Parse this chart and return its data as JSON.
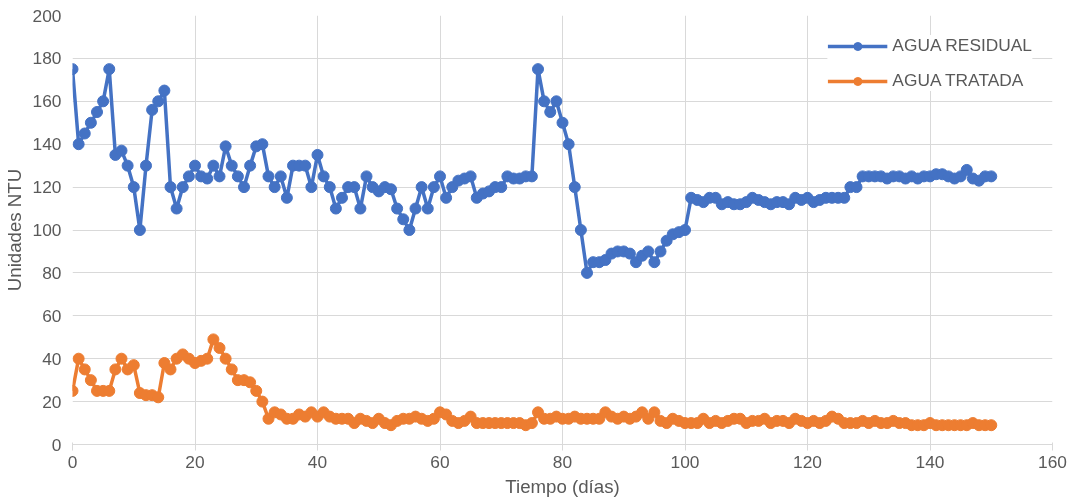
{
  "chart_data": {
    "type": "line",
    "xlabel": "Tiempo (días)",
    "ylabel": "Unidades NTU",
    "x": [
      0,
      1,
      2,
      3,
      4,
      5,
      6,
      7,
      8,
      9,
      10,
      11,
      12,
      13,
      14,
      15,
      16,
      17,
      18,
      19,
      20,
      21,
      22,
      23,
      24,
      25,
      26,
      27,
      28,
      29,
      30,
      31,
      32,
      33,
      34,
      35,
      36,
      37,
      38,
      39,
      40,
      41,
      42,
      43,
      44,
      45,
      46,
      47,
      48,
      49,
      50,
      51,
      52,
      53,
      54,
      55,
      56,
      57,
      58,
      59,
      60,
      61,
      62,
      63,
      64,
      65,
      66,
      67,
      68,
      69,
      70,
      71,
      72,
      73,
      74,
      75,
      76,
      77,
      78,
      79,
      80,
      81,
      82,
      83,
      84,
      85,
      86,
      87,
      88,
      89,
      90,
      91,
      92,
      93,
      94,
      95,
      96,
      97,
      98,
      99,
      100,
      101,
      102,
      103,
      104,
      105,
      106,
      107,
      108,
      109,
      110,
      111,
      112,
      113,
      114,
      115,
      116,
      117,
      118,
      119,
      120,
      121,
      122,
      123,
      124,
      125,
      126,
      127,
      128,
      129,
      130,
      131,
      132,
      133,
      134,
      135,
      136,
      137,
      138,
      139,
      140,
      141,
      142,
      143,
      144,
      145,
      146,
      147,
      148,
      149,
      150
    ],
    "series": [
      {
        "name": "AGUA RESIDUAL",
        "color": "#4472c4",
        "values": [
          175,
          140,
          145,
          150,
          155,
          160,
          175,
          135,
          137,
          130,
          120,
          100,
          130,
          156,
          160,
          165,
          120,
          110,
          120,
          125,
          130,
          125,
          124,
          130,
          125,
          139,
          130,
          125,
          120,
          130,
          139,
          140,
          125,
          120,
          125,
          115,
          130,
          130,
          130,
          120,
          135,
          125,
          120,
          110,
          115,
          120,
          120,
          110,
          125,
          120,
          118,
          120,
          119,
          110,
          105,
          100,
          110,
          120,
          110,
          120,
          125,
          115,
          120,
          123,
          124,
          125,
          115,
          117,
          118,
          120,
          120,
          125,
          124,
          124,
          125,
          125,
          175,
          160,
          155,
          160,
          150,
          140,
          120,
          100,
          80,
          85,
          85,
          86,
          89,
          90,
          90,
          89,
          85,
          88,
          90,
          85,
          90,
          95,
          98,
          99,
          100,
          115,
          114,
          113,
          115,
          115,
          112,
          113,
          112,
          112,
          113,
          115,
          114,
          113,
          112,
          113,
          113,
          112,
          115,
          114,
          115,
          113,
          114,
          115,
          115,
          115,
          115,
          120,
          120,
          125,
          125,
          125,
          125,
          124,
          125,
          125,
          124,
          125,
          124,
          125,
          125,
          126,
          126,
          125,
          124,
          125,
          128,
          124,
          123,
          125,
          125
        ]
      },
      {
        "name": "AGUA TRATADA",
        "color": "#ed7d31",
        "values": [
          25,
          40,
          35,
          30,
          25,
          25,
          25,
          35,
          40,
          35,
          37,
          24,
          23,
          23,
          22,
          38,
          35,
          40,
          42,
          40,
          38,
          39,
          40,
          49,
          45,
          40,
          35,
          30,
          30,
          29,
          25,
          20,
          12,
          15,
          14,
          12,
          12,
          14,
          13,
          15,
          13,
          15,
          13,
          12,
          12,
          12,
          10,
          12,
          11,
          10,
          12,
          10,
          9,
          11,
          12,
          12,
          13,
          12,
          11,
          12,
          15,
          14,
          11,
          10,
          11,
          13,
          10,
          10,
          10,
          10,
          10,
          10,
          10,
          10,
          9,
          10,
          15,
          12,
          12,
          13,
          12,
          12,
          13,
          12,
          12,
          12,
          12,
          15,
          13,
          12,
          13,
          12,
          13,
          15,
          12,
          15,
          11,
          10,
          12,
          11,
          10,
          10,
          10,
          12,
          10,
          11,
          10,
          11,
          12,
          12,
          10,
          11,
          11,
          12,
          10,
          11,
          11,
          10,
          12,
          11,
          10,
          11,
          10,
          11,
          13,
          12,
          10,
          10,
          10,
          11,
          10,
          11,
          10,
          10,
          11,
          10,
          10,
          9,
          9,
          9,
          10,
          9,
          9,
          9,
          9,
          9,
          9,
          10,
          9,
          9,
          9
        ]
      }
    ],
    "xlim": [
      0,
      160
    ],
    "xticks": [
      0,
      20,
      40,
      60,
      80,
      100,
      120,
      140,
      160
    ],
    "ylim": [
      0,
      200
    ],
    "yticks": [
      0,
      20,
      40,
      60,
      80,
      100,
      120,
      140,
      160,
      180,
      200
    ],
    "grid": true,
    "legend": "top right",
    "marker": "circle",
    "line_style": "solid"
  }
}
